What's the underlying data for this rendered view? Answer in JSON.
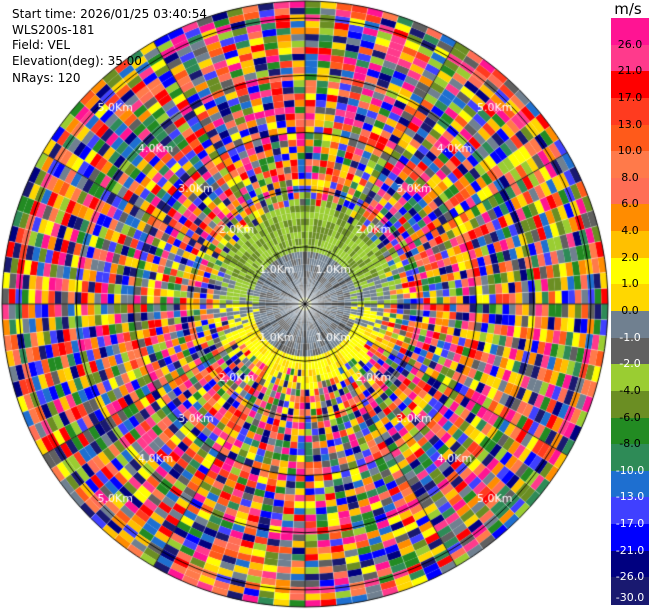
{
  "header": {
    "start_time": "Start time: 2026/01/25 03:40:54",
    "station": "WLS200s-181",
    "field": "Field: VEL",
    "elevation": "Elevation(deg): 35.00",
    "nrays": "NRays: 120"
  },
  "colorbar": {
    "unit": "m/s",
    "ticks": [
      "26.0",
      "21.0",
      "17.0",
      "13.0",
      "10.0",
      "8.0",
      "6.0",
      "4.0",
      "2.0",
      "1.0",
      "0.0",
      "-1.0",
      "-2.0",
      "-4.0",
      "-6.0",
      "-8.0",
      "-10.0",
      "-13.0",
      "-17.0",
      "-21.0",
      "-26.0",
      "-30.0"
    ],
    "colors": [
      "#ff1493",
      "#ff3a8c",
      "#ff0000",
      "#ff3b1f",
      "#ff5a1a",
      "#ff7a4a",
      "#ff6e55",
      "#ff8c00",
      "#ffc000",
      "#ffff00",
      "#ffd700",
      "#708090",
      "#606060",
      "#9acd32",
      "#6b8e23",
      "#228b22",
      "#2e8b57",
      "#1e6fd0",
      "#4040ff",
      "#0000ff",
      "#000080",
      "#191970"
    ]
  },
  "chart_data": {
    "type": "heatmap",
    "projection": "polar (PPI)",
    "field": "VEL",
    "units": "m/s",
    "nrays": 120,
    "elevation_deg": 35.0,
    "range_rings_km": [
      1.0,
      2.0,
      3.0,
      4.0,
      5.0
    ],
    "ring_labels": [
      "1.0Km",
      "2.0Km",
      "3.0Km",
      "4.0Km",
      "5.0Km"
    ],
    "value_range": [
      -30.0,
      26.0
    ],
    "structure": "Near-field (< ~1.5 km) coherent velocities: negative (-1 to -4 m/s, green) to the north, near 0 (grey) at centre, positive (2 to 4 m/s, yellow) to the south; beyond ~1.5 km noise with random values across the full colour scale"
  }
}
